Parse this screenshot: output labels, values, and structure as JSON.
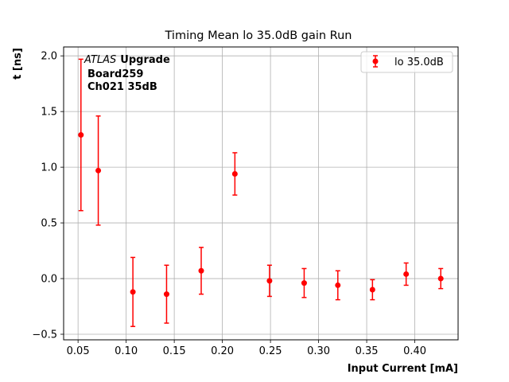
{
  "chart_data": {
    "type": "scatter",
    "title": "Timing Mean lo 35.0dB gain Run",
    "xlabel": "Input Current [mA]",
    "ylabel": "t [ns]",
    "xlim": [
      0.035,
      0.445
    ],
    "ylim": [
      -0.55,
      2.08
    ],
    "xticks": [
      "0.05",
      "0.10",
      "0.15",
      "0.20",
      "0.25",
      "0.30",
      "0.35",
      "0.40"
    ],
    "yticks": [
      "−0.5",
      "0.0",
      "0.5",
      "1.0",
      "1.5",
      "2.0"
    ],
    "grid": true,
    "legend_position": "top-right",
    "annotation": {
      "atlas": "ATLAS",
      "upgrade": "Upgrade",
      "line2": "Board259",
      "line3": "Ch021 35dB"
    },
    "series": [
      {
        "name": "lo 35.0dB",
        "color": "#ff0000",
        "marker": "circle",
        "points": [
          {
            "x": 0.053,
            "y": 1.29,
            "err": 0.68
          },
          {
            "x": 0.071,
            "y": 0.97,
            "err": 0.49
          },
          {
            "x": 0.107,
            "y": -0.12,
            "err": 0.31
          },
          {
            "x": 0.142,
            "y": -0.14,
            "err": 0.26
          },
          {
            "x": 0.178,
            "y": 0.07,
            "err": 0.21
          },
          {
            "x": 0.213,
            "y": 0.94,
            "err": 0.19
          },
          {
            "x": 0.249,
            "y": -0.02,
            "err": 0.14
          },
          {
            "x": 0.285,
            "y": -0.04,
            "err": 0.13
          },
          {
            "x": 0.32,
            "y": -0.06,
            "err": 0.13
          },
          {
            "x": 0.356,
            "y": -0.1,
            "err": 0.09
          },
          {
            "x": 0.391,
            "y": 0.04,
            "err": 0.1
          },
          {
            "x": 0.427,
            "y": 0.0,
            "err": 0.09
          }
        ]
      }
    ]
  }
}
